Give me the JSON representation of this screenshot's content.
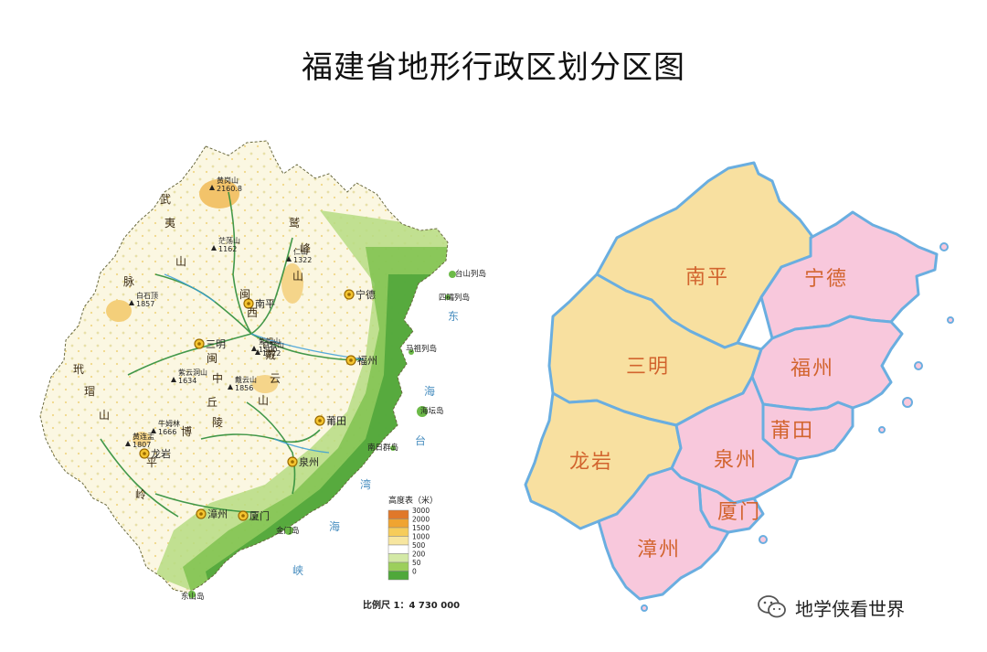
{
  "title": "福建省地形行政区划分区图",
  "topo_map": {
    "cities": [
      "南平",
      "宁德",
      "三明",
      "福州",
      "莆田",
      "泉州",
      "龙岩",
      "漳州",
      "厦门"
    ],
    "peaks": [
      {
        "name": "黄岗山",
        "elev": "2160.8"
      },
      {
        "name": "茫荡山",
        "elev": "1162"
      },
      {
        "name": "白石顶",
        "elev": "1857"
      },
      {
        "name": "紫云洞山",
        "elev": "1634"
      },
      {
        "name": "戴云山",
        "elev": "1856"
      },
      {
        "name": "紫帽山",
        "elev": "1500"
      },
      {
        "name": "牛姆林",
        "elev": "1666"
      },
      {
        "name": "黄连盂",
        "elev": "1807"
      },
      {
        "name": "白岩山",
        "elev": "1422"
      },
      {
        "name": "仁山",
        "elev": "1322"
      }
    ],
    "mountain_ranges": [
      {
        "chars": [
          "武",
          "夷",
          "山",
          "脉"
        ]
      },
      {
        "chars": [
          "玳",
          "瑁",
          "山"
        ]
      },
      {
        "chars": [
          "博",
          "平",
          "岭"
        ]
      },
      {
        "chars": [
          "鹫",
          "峰",
          "山"
        ]
      },
      {
        "chars": [
          "戴",
          "云",
          "山"
        ]
      },
      {
        "chars": [
          "闽",
          "西"
        ]
      },
      {
        "chars": [
          "闽",
          "中"
        ]
      },
      {
        "chars": [
          "丘",
          "陵"
        ]
      }
    ],
    "islands": [
      "台山列岛",
      "四礵列岛",
      "马祖列岛",
      "海坛岛",
      "南日群岛",
      "金门岛",
      "东山岛"
    ],
    "sea_labels": [
      "东",
      "海",
      "台",
      "湾",
      "海",
      "峡"
    ],
    "legend": {
      "title": "高度表（米）",
      "levels": [
        "3000",
        "2000",
        "1500",
        "1000",
        "500",
        "200",
        "50",
        "0"
      ],
      "colors": [
        "#e0782a",
        "#f0a430",
        "#f6cc5a",
        "#f7e6a0",
        "#ffffff",
        "#d3e9a6",
        "#9ccf5c",
        "#4fa83a"
      ]
    },
    "scale_label": "比例尺  1：4 730 000"
  },
  "admin_map": {
    "regions": [
      {
        "name": "南平",
        "color": "#f8e0a0"
      },
      {
        "name": "三明",
        "color": "#f8e0a0"
      },
      {
        "name": "龙岩",
        "color": "#f8e0a0"
      },
      {
        "name": "宁德",
        "color": "#f8c8dc"
      },
      {
        "name": "福州",
        "color": "#f8c8dc"
      },
      {
        "name": "莆田",
        "color": "#f8c8dc"
      },
      {
        "name": "泉州",
        "color": "#f8c8dc"
      },
      {
        "name": "厦门",
        "color": "#f8c8dc"
      },
      {
        "name": "漳州",
        "color": "#f8c8dc"
      }
    ],
    "border_color": "#6aaee0"
  },
  "watermark": {
    "icon": "wechat-icon",
    "text": "地学侠看世界"
  }
}
